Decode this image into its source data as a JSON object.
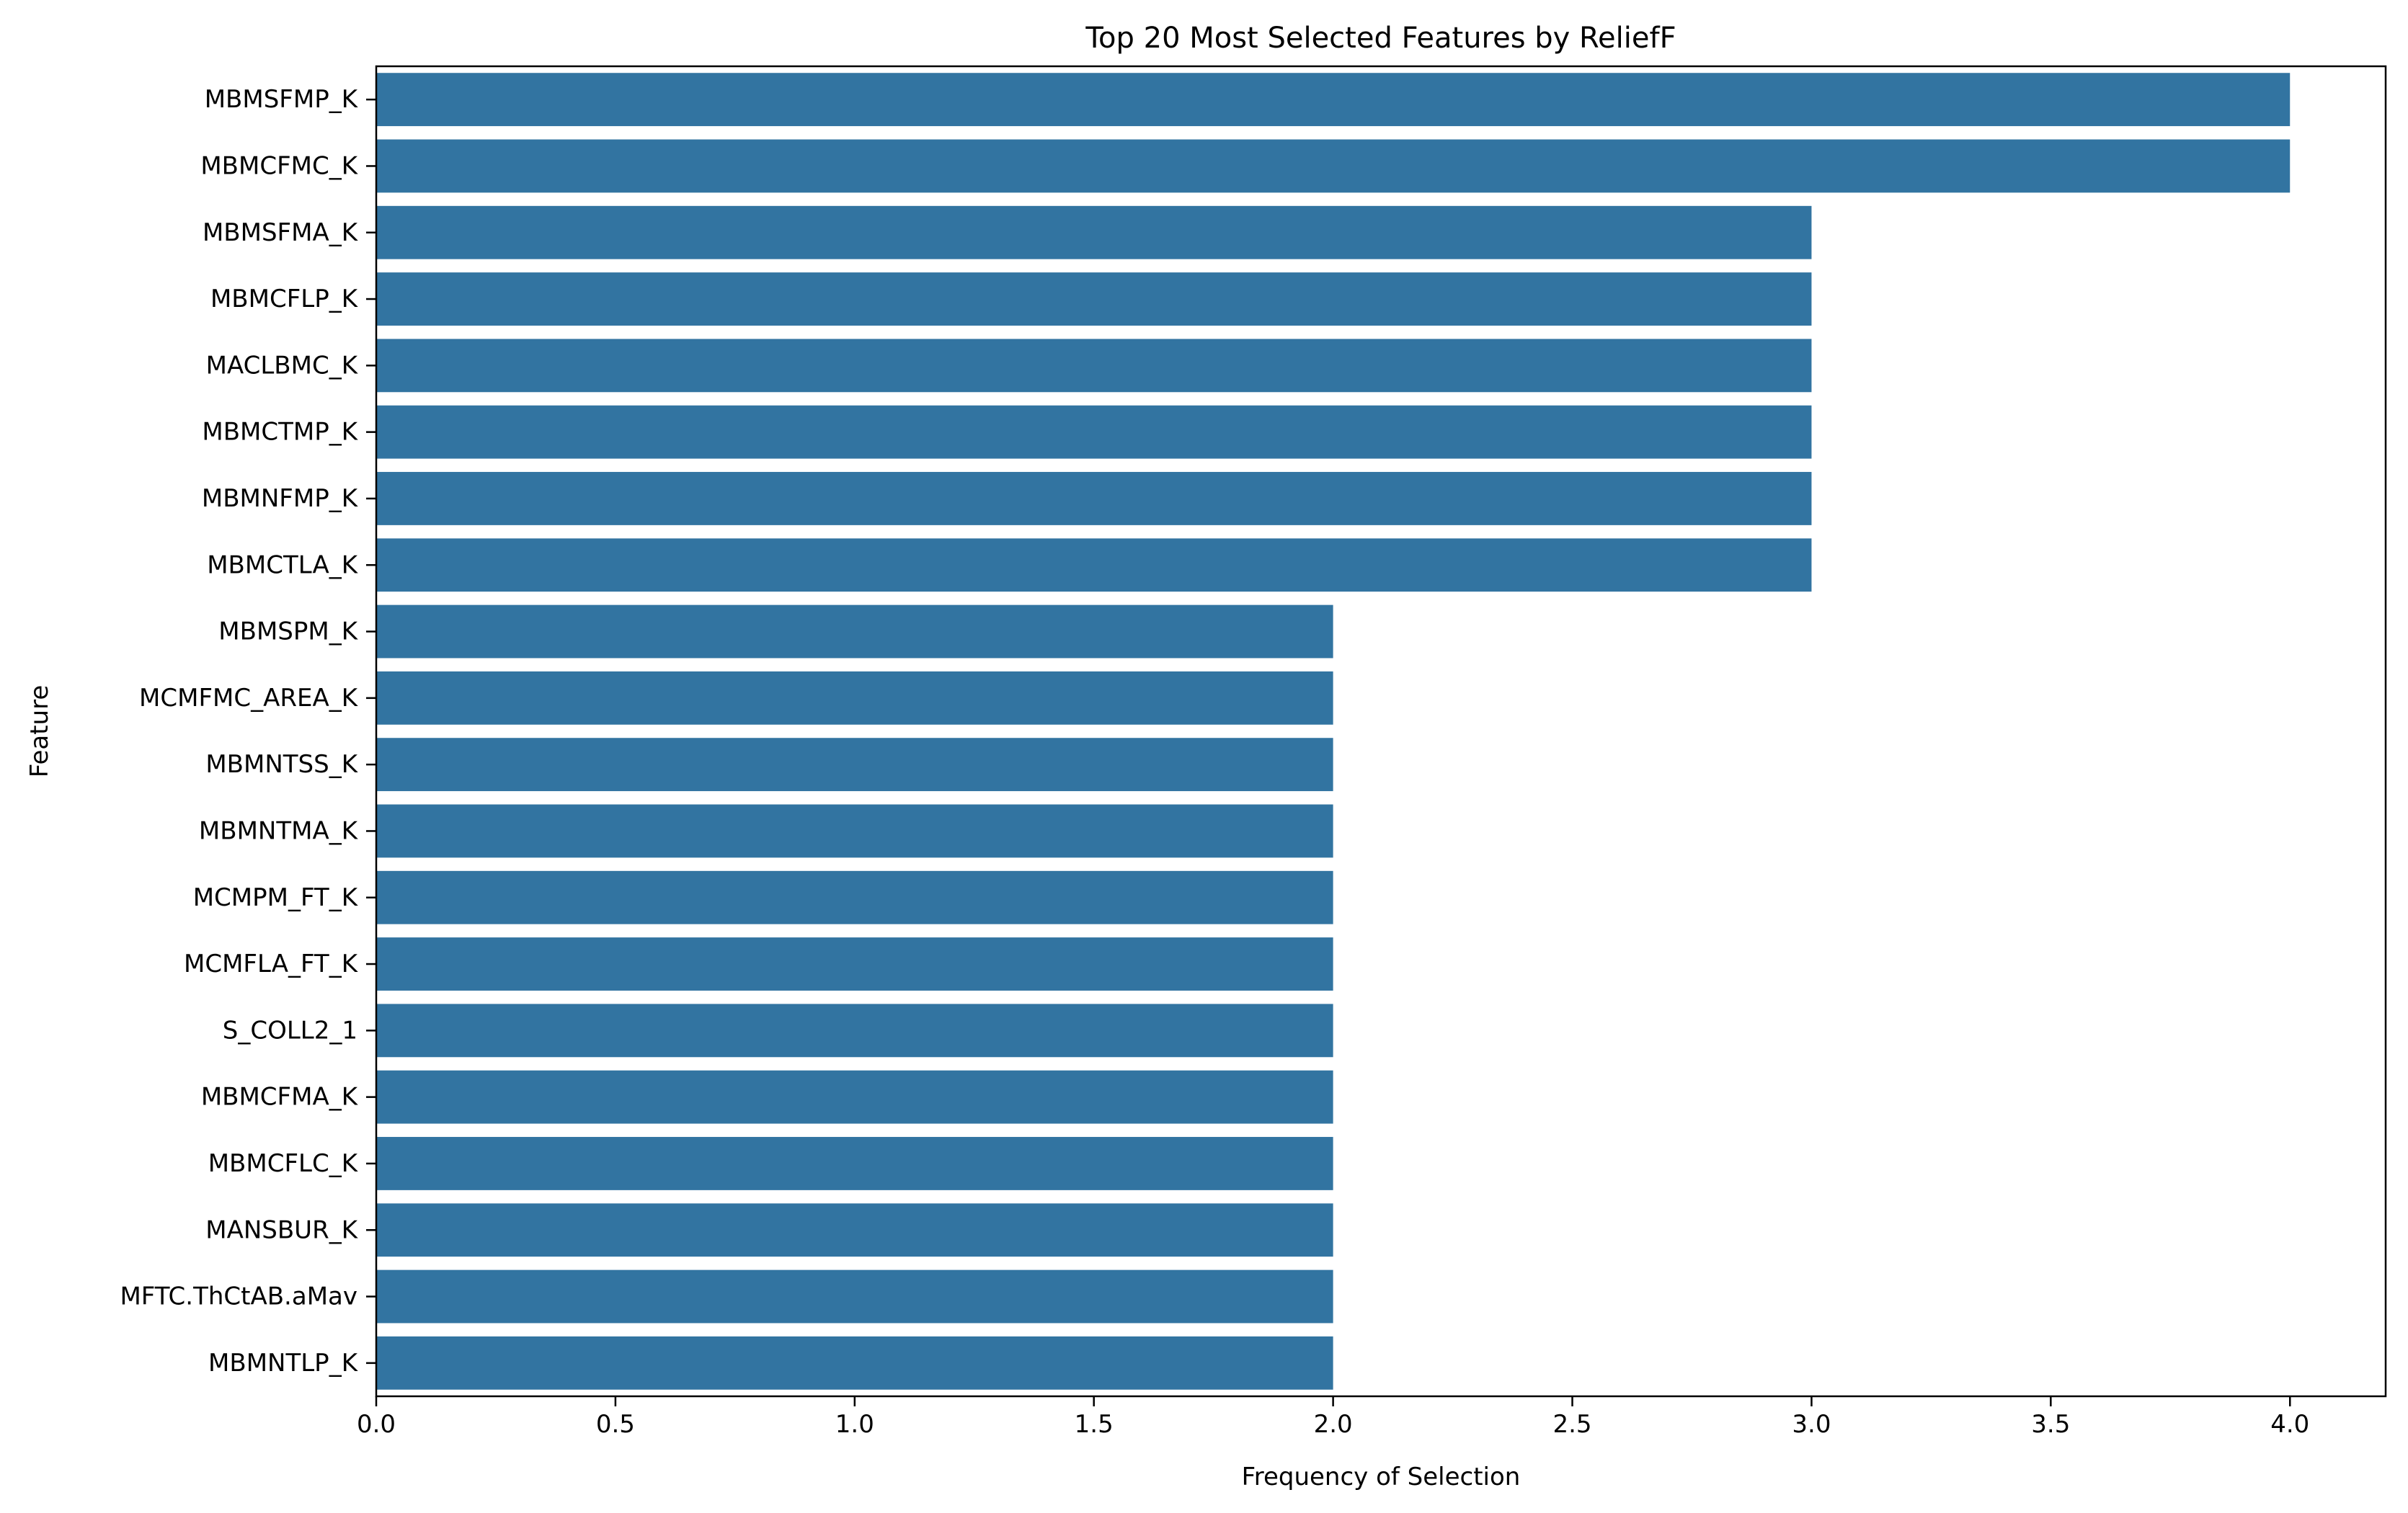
{
  "chart_data": {
    "type": "bar",
    "orientation": "horizontal",
    "title": "Top 20 Most Selected Features by ReliefF",
    "xlabel": "Frequency of Selection",
    "ylabel": "Feature",
    "xlim": [
      0,
      4.2
    ],
    "xticks": [
      0.0,
      0.5,
      1.0,
      1.5,
      2.0,
      2.5,
      3.0,
      3.5,
      4.0
    ],
    "xtick_labels": [
      "0.0",
      "0.5",
      "1.0",
      "1.5",
      "2.0",
      "2.5",
      "3.0",
      "3.5",
      "4.0"
    ],
    "bar_color": "#3274a1",
    "grid": false,
    "categories": [
      "MBMSFMP_K",
      "MBMCFMC_K",
      "MBMSFMA_K",
      "MBMCFLP_K",
      "MACLBMC_K",
      "MBMCTMP_K",
      "MBMNFMP_K",
      "MBMCTLA_K",
      "MBMSPM_K",
      "MCMFMC_AREA_K",
      "MBMNTSS_K",
      "MBMNTMA_K",
      "MCMPM_FT_K",
      "MCMFLA_FT_K",
      "S_COLL2_1",
      "MBMCFMA_K",
      "MBMCFLC_K",
      "MANSBUR_K",
      "MFTC.ThCtAB.aMav",
      "MBMNTLP_K"
    ],
    "values": [
      4,
      4,
      3,
      3,
      3,
      3,
      3,
      3,
      2,
      2,
      2,
      2,
      2,
      2,
      2,
      2,
      2,
      2,
      2,
      2
    ]
  }
}
